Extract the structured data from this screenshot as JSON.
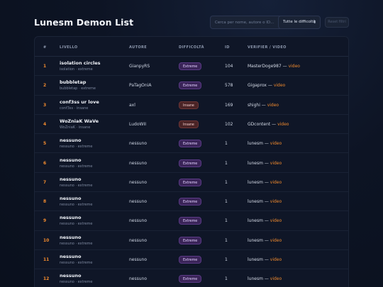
{
  "header": {
    "title": "Lunesm Demon List",
    "search_placeholder": "Cerca per nome, autore o ID...",
    "difficulty_select": "Tutte le difficoltà",
    "reset_label": "Reset filtri"
  },
  "table": {
    "columns": [
      "#",
      "LIVELLO",
      "AUTORE",
      "DIFFICOLTÀ",
      "ID",
      "VERIFIER / VIDEO"
    ],
    "rows": [
      {
        "rank": "1",
        "name": "isolation circles",
        "sub": "isolation · extreme",
        "author": "GianpyRS",
        "difficulty": "Extreme",
        "id": "104",
        "verifier": "MasterDoge987",
        "video": "video"
      },
      {
        "rank": "2",
        "name": "bubbletap",
        "sub": "bubbletap · extreme",
        "author": "PaTagOniA",
        "difficulty": "Extreme",
        "id": "578",
        "verifier": "Gigaprox",
        "video": "video"
      },
      {
        "rank": "3",
        "name": "conf3ss ur love",
        "sub": "conf3ss · insane",
        "author": "axl",
        "difficulty": "Insane",
        "id": "169",
        "verifier": "shighi",
        "video": "video"
      },
      {
        "rank": "4",
        "name": "WoZniaK WaVe",
        "sub": "WoZniaK · insane",
        "author": "LudoWII",
        "difficulty": "Insane",
        "id": "102",
        "verifier": "GDcontent",
        "video": "video"
      },
      {
        "rank": "5",
        "name": "nessuno",
        "sub": "nessuno · extreme",
        "author": "nessuno",
        "difficulty": "Extreme",
        "id": "1",
        "verifier": "lunesm",
        "video": "video"
      },
      {
        "rank": "6",
        "name": "nessuno",
        "sub": "nessuno · extreme",
        "author": "nessuno",
        "difficulty": "Extreme",
        "id": "1",
        "verifier": "lunesm",
        "video": "video"
      },
      {
        "rank": "7",
        "name": "nessuno",
        "sub": "nessuno · extreme",
        "author": "nessuno",
        "difficulty": "Extreme",
        "id": "1",
        "verifier": "lunesm",
        "video": "video"
      },
      {
        "rank": "8",
        "name": "nessuno",
        "sub": "nessuno · extreme",
        "author": "nessuno",
        "difficulty": "Extreme",
        "id": "1",
        "verifier": "lunesm",
        "video": "video"
      },
      {
        "rank": "9",
        "name": "nessuno",
        "sub": "nessuno · extreme",
        "author": "nessuno",
        "difficulty": "Extreme",
        "id": "1",
        "verifier": "lunesm",
        "video": "video"
      },
      {
        "rank": "10",
        "name": "nessuno",
        "sub": "nessuno · extreme",
        "author": "nessuno",
        "difficulty": "Extreme",
        "id": "1",
        "verifier": "lunesm",
        "video": "video"
      },
      {
        "rank": "11",
        "name": "nessuno",
        "sub": "nessuno · extreme",
        "author": "nessuno",
        "difficulty": "Extreme",
        "id": "1",
        "verifier": "lunesm",
        "video": "video"
      },
      {
        "rank": "12",
        "name": "nessuno",
        "sub": "nessuno · extreme",
        "author": "nessuno",
        "difficulty": "Extreme",
        "id": "1",
        "verifier": "lunesm",
        "video": "video"
      }
    ]
  },
  "colors": {
    "accent": "#f08a2e",
    "background": "#0d1424",
    "extreme_badge": "#3a2458",
    "insane_badge": "#4a2426"
  }
}
